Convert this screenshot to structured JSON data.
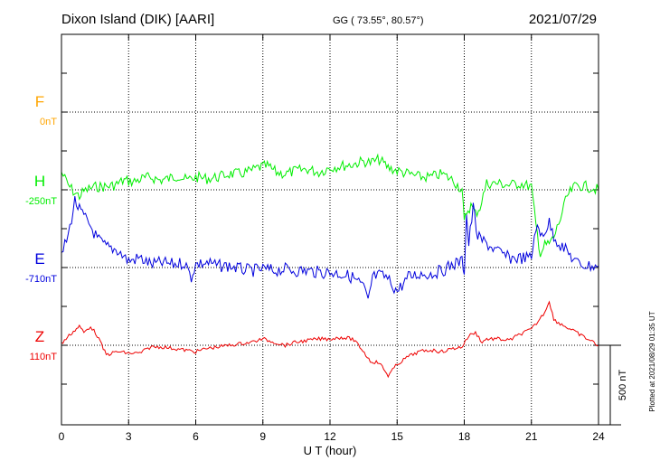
{
  "header": {
    "station": "Dixon Island (DIK)  [AARI]",
    "coords": "GG ( 73.55°,  80.57°)",
    "date": "2021/07/29"
  },
  "plotted_note": "Plotted at 2021/08/29 01:35 UT",
  "colors": {
    "F": "#ffa500",
    "H": "#00ee00",
    "E": "#0000dd",
    "Z": "#ee0000",
    "axis": "#000000"
  },
  "chart_data": {
    "type": "line",
    "xlabel": "U T (hour)",
    "xlim": [
      0,
      24
    ],
    "xticks": [
      0,
      3,
      6,
      9,
      12,
      15,
      18,
      21,
      24
    ],
    "grid": true,
    "scale_bar": "500 nT",
    "series": [
      {
        "name": "F",
        "baseline_label": "0nT",
        "x": [],
        "y": []
      },
      {
        "name": "H",
        "baseline_label": "-250nT",
        "x": [
          0,
          0.3,
          0.6,
          0.8,
          1.0,
          1.3,
          1.6,
          2.0,
          2.4,
          2.8,
          3.2,
          3.6,
          4.0,
          4.4,
          4.8,
          5.2,
          5.6,
          6.0,
          6.5,
          7.0,
          7.5,
          8.0,
          8.5,
          8.8,
          9.2,
          9.6,
          10.0,
          10.5,
          11.0,
          11.5,
          12.0,
          12.5,
          13.0,
          13.5,
          13.8,
          14.2,
          14.6,
          15.0,
          15.5,
          16.0,
          16.5,
          17.0,
          17.5,
          17.9,
          18.0,
          18.1,
          18.3,
          18.5,
          18.7,
          19.0,
          19.5,
          20.0,
          20.5,
          21.0,
          21.2,
          21.4,
          21.6,
          21.8,
          22.0,
          22.3,
          22.6,
          23.0,
          23.5,
          24.0
        ],
        "y": [
          110,
          30,
          -20,
          -40,
          -10,
          10,
          20,
          20,
          30,
          60,
          50,
          70,
          80,
          60,
          70,
          90,
          60,
          80,
          70,
          80,
          100,
          100,
          120,
          140,
          150,
          110,
          100,
          120,
          130,
          110,
          140,
          150,
          160,
          180,
          170,
          190,
          140,
          120,
          100,
          80,
          80,
          100,
          60,
          0,
          -210,
          -140,
          -100,
          -150,
          -110,
          40,
          40,
          30,
          40,
          20,
          -220,
          -400,
          -350,
          -340,
          -300,
          -180,
          -40,
          30,
          20,
          0
        ]
      },
      {
        "name": "E",
        "baseline_label": "-710nT",
        "x": [
          0,
          0.3,
          0.6,
          0.8,
          1.0,
          1.3,
          1.6,
          2.0,
          2.5,
          3.0,
          3.5,
          4.0,
          4.5,
          5.0,
          5.5,
          5.8,
          6.0,
          6.5,
          7.0,
          7.5,
          8.0,
          8.5,
          9.0,
          9.5,
          10.0,
          10.5,
          11.0,
          11.5,
          12.0,
          12.5,
          13.0,
          13.5,
          13.7,
          13.9,
          14.2,
          14.5,
          14.8,
          15.0,
          15.5,
          16.0,
          16.5,
          17.0,
          17.5,
          17.9,
          18.0,
          18.1,
          18.2,
          18.4,
          18.6,
          19.0,
          19.5,
          20.0,
          20.5,
          21.0,
          21.2,
          21.4,
          21.6,
          21.8,
          22.0,
          22.3,
          22.6,
          23.0,
          23.5,
          24.0
        ],
        "y": [
          80,
          200,
          420,
          360,
          320,
          260,
          180,
          130,
          110,
          40,
          60,
          20,
          30,
          20,
          30,
          -60,
          20,
          30,
          10,
          10,
          -10,
          -20,
          -10,
          -20,
          -10,
          -20,
          -20,
          -30,
          -30,
          -40,
          -60,
          -120,
          -220,
          -60,
          -50,
          -60,
          -110,
          -150,
          -60,
          -40,
          -40,
          -20,
          20,
          40,
          -20,
          330,
          150,
          380,
          190,
          150,
          100,
          60,
          60,
          60,
          260,
          200,
          230,
          280,
          200,
          140,
          100,
          30,
          10,
          10
        ]
      },
      {
        "name": "Z",
        "baseline_label": "110nT",
        "x": [
          0,
          0.4,
          0.8,
          1.0,
          1.3,
          1.6,
          2.0,
          2.5,
          3.0,
          3.5,
          4.0,
          4.5,
          5.0,
          5.5,
          6.0,
          6.5,
          7.0,
          7.5,
          8.0,
          8.5,
          9.0,
          9.5,
          10.0,
          10.5,
          11.0,
          11.5,
          12.0,
          12.5,
          13.0,
          13.4,
          13.8,
          14.2,
          14.6,
          15.0,
          15.5,
          16.0,
          16.5,
          17.0,
          17.5,
          17.9,
          18.2,
          18.5,
          18.8,
          19.0,
          19.5,
          20.0,
          20.5,
          21.0,
          21.3,
          21.6,
          21.8,
          22.0,
          22.5,
          23.0,
          23.5,
          24.0
        ],
        "y": [
          10,
          70,
          120,
          80,
          120,
          60,
          -60,
          -40,
          -50,
          -50,
          -10,
          -10,
          -20,
          -30,
          -40,
          -20,
          -10,
          0,
          10,
          20,
          40,
          20,
          0,
          20,
          30,
          40,
          40,
          50,
          40,
          -20,
          -100,
          -110,
          -190,
          -120,
          -70,
          -40,
          -30,
          -40,
          -20,
          -10,
          60,
          80,
          20,
          40,
          40,
          30,
          70,
          100,
          150,
          210,
          280,
          160,
          120,
          80,
          40,
          0
        ]
      }
    ]
  }
}
